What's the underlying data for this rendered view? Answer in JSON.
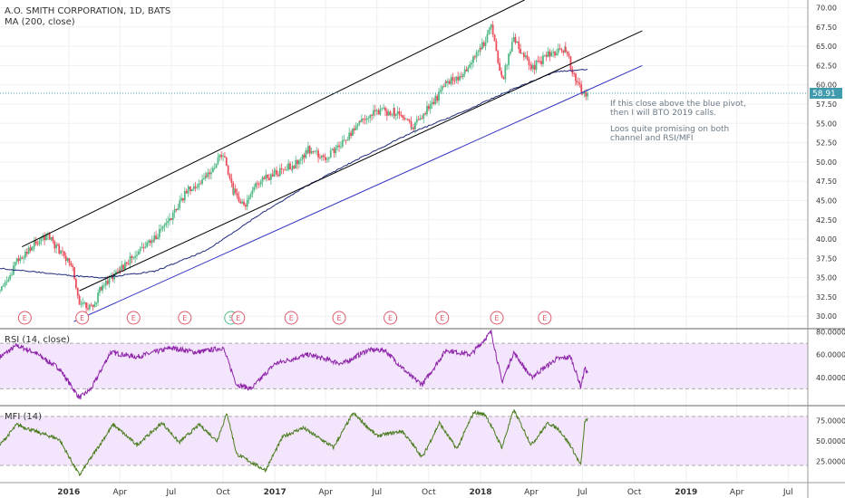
{
  "header": {
    "title": "A.O. SMITH CORPORATION, 1D, BATS",
    "ma_label": "MA (200, close)"
  },
  "annotation": {
    "lines": [
      "If this close above the blue pivot,",
      "then I will BTO 2019 calls.",
      "",
      "Loos quite promising on both",
      "channel and RSI/MFI"
    ]
  },
  "colors": {
    "up": "#53b987",
    "down": "#eb4d5c",
    "ma": "#1e2a78",
    "channel": "#000000",
    "blue_pivot": "#2f2fbf",
    "rsi": "#8e24aa",
    "mfi": "#4a7c1f",
    "band": "#f3e5fb",
    "price_tag": "#3f9bad",
    "event_circle": "#e05a6b"
  },
  "chart_data": [
    {
      "type": "candlestick",
      "title": "A.O. SMITH CORPORATION, 1D, BATS",
      "ylim": [
        28.5,
        71
      ],
      "y_ticks": [
        30.0,
        32.5,
        35.0,
        37.5,
        40.0,
        42.5,
        45.0,
        47.5,
        50.0,
        52.5,
        55.0,
        57.5,
        60.0,
        62.5,
        65.0,
        67.5,
        70.0
      ],
      "y_tick_labels": [
        "30.00",
        "32.50",
        "35.00",
        "37.50",
        "40.00",
        "42.50",
        "45.00",
        "47.50",
        "50.00",
        "52.50",
        "55.00",
        "57.50",
        "60.00",
        "62.50",
        "65.00",
        "67.50",
        "70.00"
      ],
      "x_ticks": [
        "2016-01-01",
        "2016-04-01",
        "2016-07-01",
        "2016-10-01",
        "2017-01-01",
        "2017-04-01",
        "2017-07-01",
        "2017-10-01",
        "2018-01-01",
        "2018-04-01",
        "2018-07-01",
        "2018-10-01",
        "2019-01-01",
        "2019-04-01",
        "2019-07-01"
      ],
      "x_tick_labels": [
        "2016",
        "Apr",
        "Jul",
        "Oct",
        "2017",
        "Apr",
        "Jul",
        "Oct",
        "2018",
        "Apr",
        "Jul",
        "Oct",
        "2019",
        "Apr",
        "Jul"
      ],
      "bold_ticks": [
        "2016",
        "2017",
        "2018",
        "2019"
      ],
      "x_domain": [
        "2015-09-01",
        "2019-08-05"
      ],
      "last_price": 58.91,
      "last_price_label": "58.91",
      "price_path": [
        [
          "2015-09-01",
          33.0
        ],
        [
          "2015-10-01",
          37.0
        ],
        [
          "2015-11-01",
          39.5
        ],
        [
          "2015-11-25",
          40.2
        ],
        [
          "2015-12-15",
          38.5
        ],
        [
          "2016-01-05",
          37.0
        ],
        [
          "2016-01-20",
          32.0
        ],
        [
          "2016-02-10",
          31.0
        ],
        [
          "2016-03-01",
          34.0
        ],
        [
          "2016-04-01",
          36.0
        ],
        [
          "2016-05-01",
          38.5
        ],
        [
          "2016-06-01",
          40.0
        ],
        [
          "2016-07-01",
          43.0
        ],
        [
          "2016-08-01",
          46.5
        ],
        [
          "2016-09-01",
          48.0
        ],
        [
          "2016-10-01",
          51.0
        ],
        [
          "2016-10-20",
          46.0
        ],
        [
          "2016-11-10",
          44.5
        ],
        [
          "2016-12-01",
          47.5
        ],
        [
          "2017-01-01",
          48.5
        ],
        [
          "2017-02-01",
          49.5
        ],
        [
          "2017-03-01",
          51.5
        ],
        [
          "2017-04-01",
          50.5
        ],
        [
          "2017-05-01",
          52.5
        ],
        [
          "2017-06-01",
          55.0
        ],
        [
          "2017-07-01",
          56.5
        ],
        [
          "2017-08-01",
          56.5
        ],
        [
          "2017-09-01",
          54.5
        ],
        [
          "2017-10-01",
          57.0
        ],
        [
          "2017-11-01",
          60.0
        ],
        [
          "2017-12-01",
          61.5
        ],
        [
          "2018-01-01",
          64.5
        ],
        [
          "2018-01-20",
          67.5
        ],
        [
          "2018-02-08",
          60.5
        ],
        [
          "2018-03-01",
          66.0
        ],
        [
          "2018-04-01",
          62.0
        ],
        [
          "2018-05-01",
          64.0
        ],
        [
          "2018-06-01",
          64.5
        ],
        [
          "2018-06-20",
          60.5
        ],
        [
          "2018-07-01",
          59.0
        ],
        [
          "2018-07-10",
          58.91
        ]
      ],
      "ma_path": [
        [
          "2015-09-01",
          36.2
        ],
        [
          "2016-01-01",
          35.3
        ],
        [
          "2016-03-01",
          35.0
        ],
        [
          "2016-06-01",
          35.8
        ],
        [
          "2016-09-01",
          38.5
        ],
        [
          "2016-12-01",
          43.0
        ],
        [
          "2017-03-01",
          47.0
        ],
        [
          "2017-06-01",
          50.5
        ],
        [
          "2017-09-01",
          53.8
        ],
        [
          "2017-12-01",
          56.5
        ],
        [
          "2018-03-01",
          59.5
        ],
        [
          "2018-05-15",
          61.7
        ],
        [
          "2018-07-10",
          62.0
        ]
      ],
      "channel_lines": [
        {
          "name": "upper",
          "from": [
            "2015-10-10",
            39.0
          ],
          "to": [
            "2018-03-20",
            71.0
          ]
        },
        {
          "name": "lower",
          "from": [
            "2016-01-20",
            33.3
          ],
          "to": [
            "2018-10-15",
            67.0
          ]
        },
        {
          "name": "blue_pivot",
          "from": [
            "2016-01-10",
            29.3
          ],
          "to": [
            "2018-10-15",
            62.5
          ]
        }
      ],
      "events": [
        {
          "date": "2015-10-15",
          "label": "E"
        },
        {
          "date": "2016-01-25",
          "label": "E"
        },
        {
          "date": "2016-04-25",
          "label": "E"
        },
        {
          "date": "2016-07-25",
          "label": "E"
        },
        {
          "date": "2016-10-15",
          "label": "S"
        },
        {
          "date": "2016-10-28",
          "label": "E"
        },
        {
          "date": "2017-01-30",
          "label": "E"
        },
        {
          "date": "2017-04-25",
          "label": "E"
        },
        {
          "date": "2017-07-25",
          "label": "E"
        },
        {
          "date": "2017-10-25",
          "label": "E"
        },
        {
          "date": "2018-01-30",
          "label": "E"
        },
        {
          "date": "2018-04-25",
          "label": "E"
        }
      ]
    },
    {
      "type": "line",
      "title": "RSI (14, close)",
      "ylim": [
        16,
        82
      ],
      "y_ticks": [
        40,
        60,
        80
      ],
      "y_tick_labels": [
        "40.0000",
        "60.0000",
        "80.0000"
      ],
      "band": [
        30,
        70
      ],
      "series_path": [
        [
          "2015-09-01",
          58
        ],
        [
          "2015-10-01",
          68
        ],
        [
          "2015-11-01",
          62
        ],
        [
          "2015-12-15",
          48
        ],
        [
          "2016-01-20",
          22
        ],
        [
          "2016-02-10",
          30
        ],
        [
          "2016-03-15",
          62
        ],
        [
          "2016-05-01",
          58
        ],
        [
          "2016-07-01",
          66
        ],
        [
          "2016-08-15",
          62
        ],
        [
          "2016-10-01",
          66
        ],
        [
          "2016-10-25",
          34
        ],
        [
          "2016-11-20",
          30
        ],
        [
          "2017-01-01",
          52
        ],
        [
          "2017-03-01",
          60
        ],
        [
          "2017-05-01",
          52
        ],
        [
          "2017-06-15",
          64
        ],
        [
          "2017-07-15",
          64
        ],
        [
          "2017-09-01",
          40
        ],
        [
          "2017-09-20",
          34
        ],
        [
          "2017-11-01",
          64
        ],
        [
          "2017-12-15",
          60
        ],
        [
          "2018-01-20",
          80
        ],
        [
          "2018-02-08",
          36
        ],
        [
          "2018-03-01",
          62
        ],
        [
          "2018-04-01",
          40
        ],
        [
          "2018-05-15",
          56
        ],
        [
          "2018-06-10",
          58
        ],
        [
          "2018-06-28",
          32
        ],
        [
          "2018-07-05",
          48
        ],
        [
          "2018-07-10",
          44
        ]
      ]
    },
    {
      "type": "line",
      "title": "MFI (14)",
      "ylim": [
        0,
        92
      ],
      "y_ticks": [
        25,
        50,
        75
      ],
      "y_tick_labels": [
        "25.0000",
        "50.0000",
        "75.0000"
      ],
      "band": [
        20,
        80
      ],
      "series_path": [
        [
          "2015-09-01",
          45
        ],
        [
          "2015-10-01",
          70
        ],
        [
          "2015-11-01",
          62
        ],
        [
          "2015-12-15",
          52
        ],
        [
          "2016-01-20",
          8
        ],
        [
          "2016-02-20",
          40
        ],
        [
          "2016-03-20",
          70
        ],
        [
          "2016-05-01",
          45
        ],
        [
          "2016-06-15",
          72
        ],
        [
          "2016-07-15",
          48
        ],
        [
          "2016-08-20",
          70
        ],
        [
          "2016-09-20",
          50
        ],
        [
          "2016-10-08",
          84
        ],
        [
          "2016-10-25",
          34
        ],
        [
          "2016-12-15",
          14
        ],
        [
          "2017-01-15",
          55
        ],
        [
          "2017-02-20",
          66
        ],
        [
          "2017-04-15",
          42
        ],
        [
          "2017-05-20",
          84
        ],
        [
          "2017-07-01",
          56
        ],
        [
          "2017-08-15",
          62
        ],
        [
          "2017-09-20",
          30
        ],
        [
          "2017-10-20",
          72
        ],
        [
          "2017-11-20",
          40
        ],
        [
          "2017-12-20",
          85
        ],
        [
          "2018-01-10",
          82
        ],
        [
          "2018-02-08",
          42
        ],
        [
          "2018-03-01",
          88
        ],
        [
          "2018-04-01",
          45
        ],
        [
          "2018-05-01",
          72
        ],
        [
          "2018-05-20",
          64
        ],
        [
          "2018-06-10",
          44
        ],
        [
          "2018-06-28",
          20
        ],
        [
          "2018-07-05",
          72
        ],
        [
          "2018-07-10",
          78
        ]
      ]
    }
  ]
}
